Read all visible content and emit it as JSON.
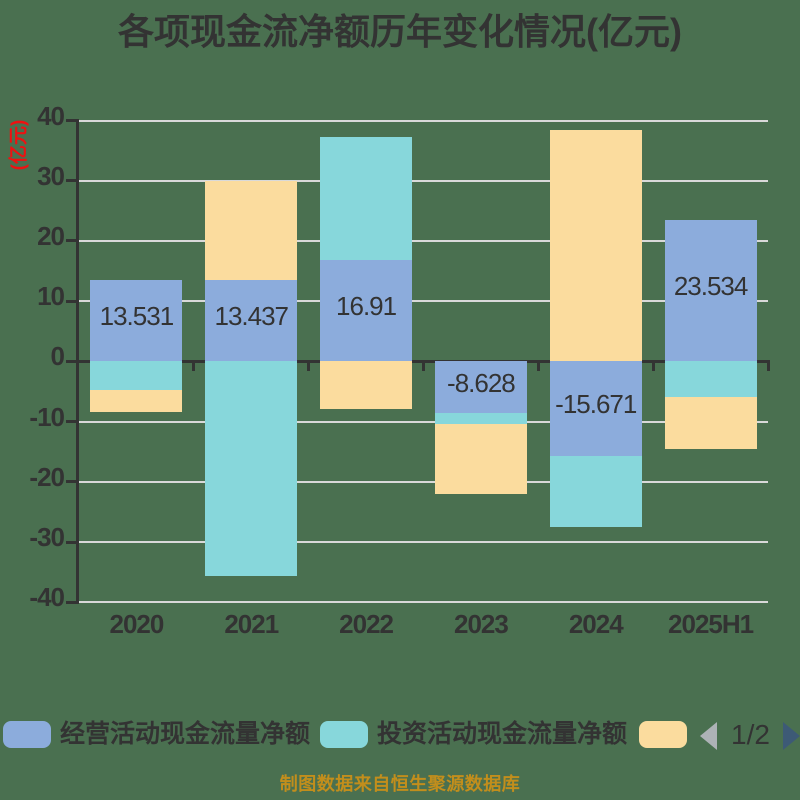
{
  "chart": {
    "title": "各项现金流净额历年变化情况(亿元)",
    "y_axis_unit_label": "(亿元)",
    "y_tick_labels": [
      "40",
      "30",
      "20",
      "10",
      "0",
      "-10",
      "-20",
      "-30",
      "-40"
    ],
    "x_tick_labels": [
      "2020",
      "2021",
      "2022",
      "2023",
      "2024",
      "2025H1"
    ]
  },
  "chart_data": {
    "type": "bar",
    "stacked": true,
    "title": "各项现金流净额历年变化情况(亿元)",
    "categories": [
      "2020",
      "2021",
      "2022",
      "2023",
      "2024",
      "2025H1"
    ],
    "series": [
      {
        "name": "经营活动现金流量净额",
        "color": "#8CACDC",
        "values": [
          13.531,
          13.437,
          16.91,
          -8.628,
          -15.671,
          23.534
        ],
        "data_labels": [
          "13.531",
          "13.437",
          "16.91",
          "-8.628",
          "-15.671",
          "23.534"
        ]
      },
      {
        "name": "投资活动现金流量净额",
        "color": "#87D7DB",
        "values": [
          -4.75,
          -35.7,
          20.3,
          -1.8,
          -11.9,
          -5.9
        ]
      },
      {
        "name": "",
        "color": "#FBDC9E",
        "values": [
          -3.65,
          16.563,
          -7.95,
          -11.6,
          38.5,
          -8.7
        ]
      }
    ],
    "ylim": [
      -40,
      40
    ],
    "y_tick_step": 10,
    "ylabel": "(亿元)",
    "xlabel": "",
    "grid": true,
    "legend_position": "bottom"
  },
  "legend": {
    "items": [
      {
        "label": "经营活动现金流量净额",
        "color": "#8CACDC"
      },
      {
        "label": "投资活动现金流量净额",
        "color": "#87D7DB"
      },
      {
        "label": "",
        "color": "#FBDC9E"
      }
    ],
    "pager_text": "1/2"
  },
  "footer": {
    "caption": "制图数据来自恒生聚源数据库"
  },
  "colors": {
    "background": "#4A7050",
    "axis": "#333333",
    "gridline": "#D9D9D9",
    "title_text": "#333333",
    "unit_label": "#EE1111",
    "caption": "#C28E1C",
    "pager_prev_arrow": "#ADB2B6",
    "pager_next_arrow": "#3D5A76"
  }
}
